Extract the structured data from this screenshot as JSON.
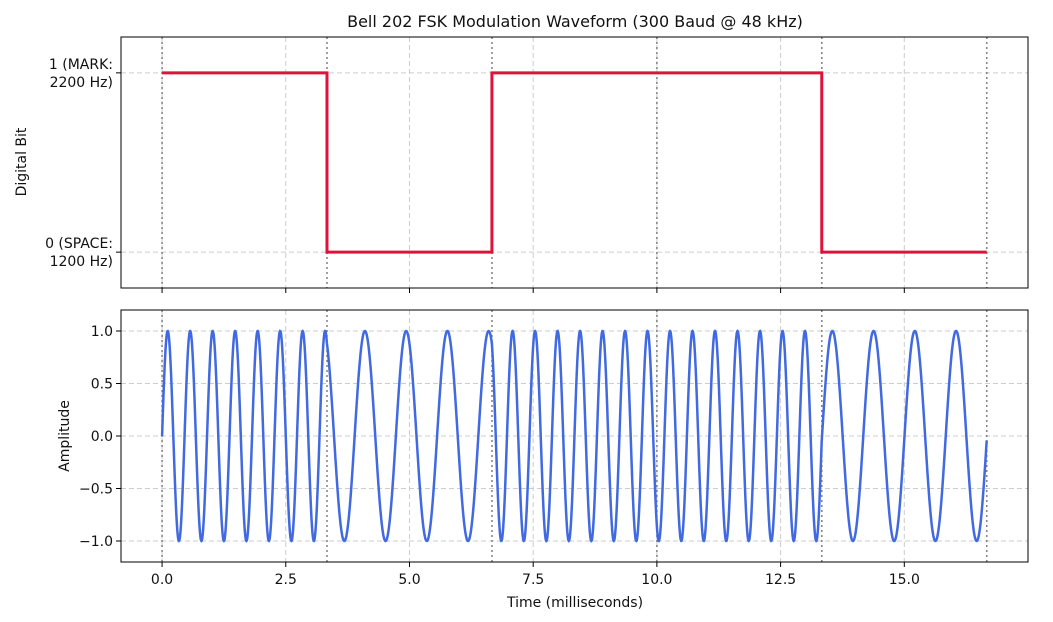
{
  "chart_data": {
    "title": "Bell 202 FSK Modulation Waveform (300 Baud @ 48 kHz)",
    "xlabel": "Time (milliseconds)",
    "x_ticks": [
      "0.0",
      "2.5",
      "5.0",
      "7.5",
      "10.0",
      "12.5",
      "15.0"
    ],
    "xlim": [
      -0.83,
      17.5
    ],
    "bit_boundaries_ms": [
      0,
      3.333,
      6.667,
      10.0,
      13.333,
      16.667
    ],
    "colors": {
      "bits": "#dc143c",
      "wave": "#4169e1",
      "grid": "#cccccc",
      "boundary": "#808080"
    },
    "panels": [
      {
        "type": "line",
        "step": true,
        "ylabel": "Digital Bit",
        "ylim": [
          -0.2,
          1.2
        ],
        "y_ticks": [
          {
            "value": 1,
            "lines": [
              "1 (MARK:",
              "2200 Hz)"
            ]
          },
          {
            "value": 0,
            "lines": [
              "0 (SPACE:",
              "1200 Hz)"
            ]
          }
        ],
        "bits": [
          1,
          0,
          1,
          1,
          0
        ],
        "bit_duration_ms": 3.333
      },
      {
        "type": "line",
        "ylabel": "Amplitude",
        "ylim": [
          -1.2,
          1.2
        ],
        "y_ticks": [
          {
            "value": 1.0,
            "label": "1.0"
          },
          {
            "value": 0.5,
            "label": "0.5"
          },
          {
            "value": 0.0,
            "label": "0.0"
          },
          {
            "value": -0.5,
            "label": "−0.5"
          },
          {
            "value": -1.0,
            "label": "−1.0"
          }
        ],
        "mark_freq_hz": 2200,
        "space_freq_hz": 1200,
        "x_range_ms": [
          0,
          16.667
        ]
      }
    ]
  }
}
